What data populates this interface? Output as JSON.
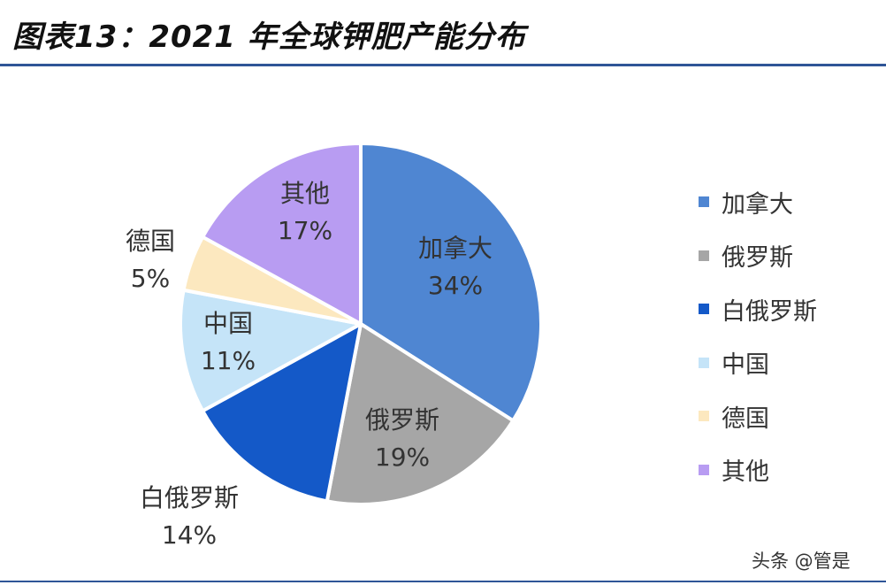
{
  "title": "图表13：2021 年全球钾肥产能分布",
  "colors": {
    "rule": "#2f5597",
    "slice_stroke": "#ffffff",
    "label_text": "#333333"
  },
  "chart_data": {
    "type": "pie",
    "title": "",
    "slices": [
      {
        "name": "加拿大",
        "value": 34,
        "label": "34%",
        "color": "#4f86d2"
      },
      {
        "name": "俄罗斯",
        "value": 19,
        "label": "19%",
        "color": "#a6a6a6"
      },
      {
        "name": "白俄罗斯",
        "value": 14,
        "label": "14%",
        "color": "#1459c8"
      },
      {
        "name": "中国",
        "value": 11,
        "label": "11%",
        "color": "#c5e4f8"
      },
      {
        "name": "德国",
        "value": 5,
        "label": "5%",
        "color": "#fce8bf"
      },
      {
        "name": "其他",
        "value": 17,
        "label": "17%",
        "color": "#b89cf2"
      }
    ],
    "start_angle_deg": 0,
    "direction": "clockwise",
    "legend_position": "right"
  },
  "watermark": "头条 @管是"
}
